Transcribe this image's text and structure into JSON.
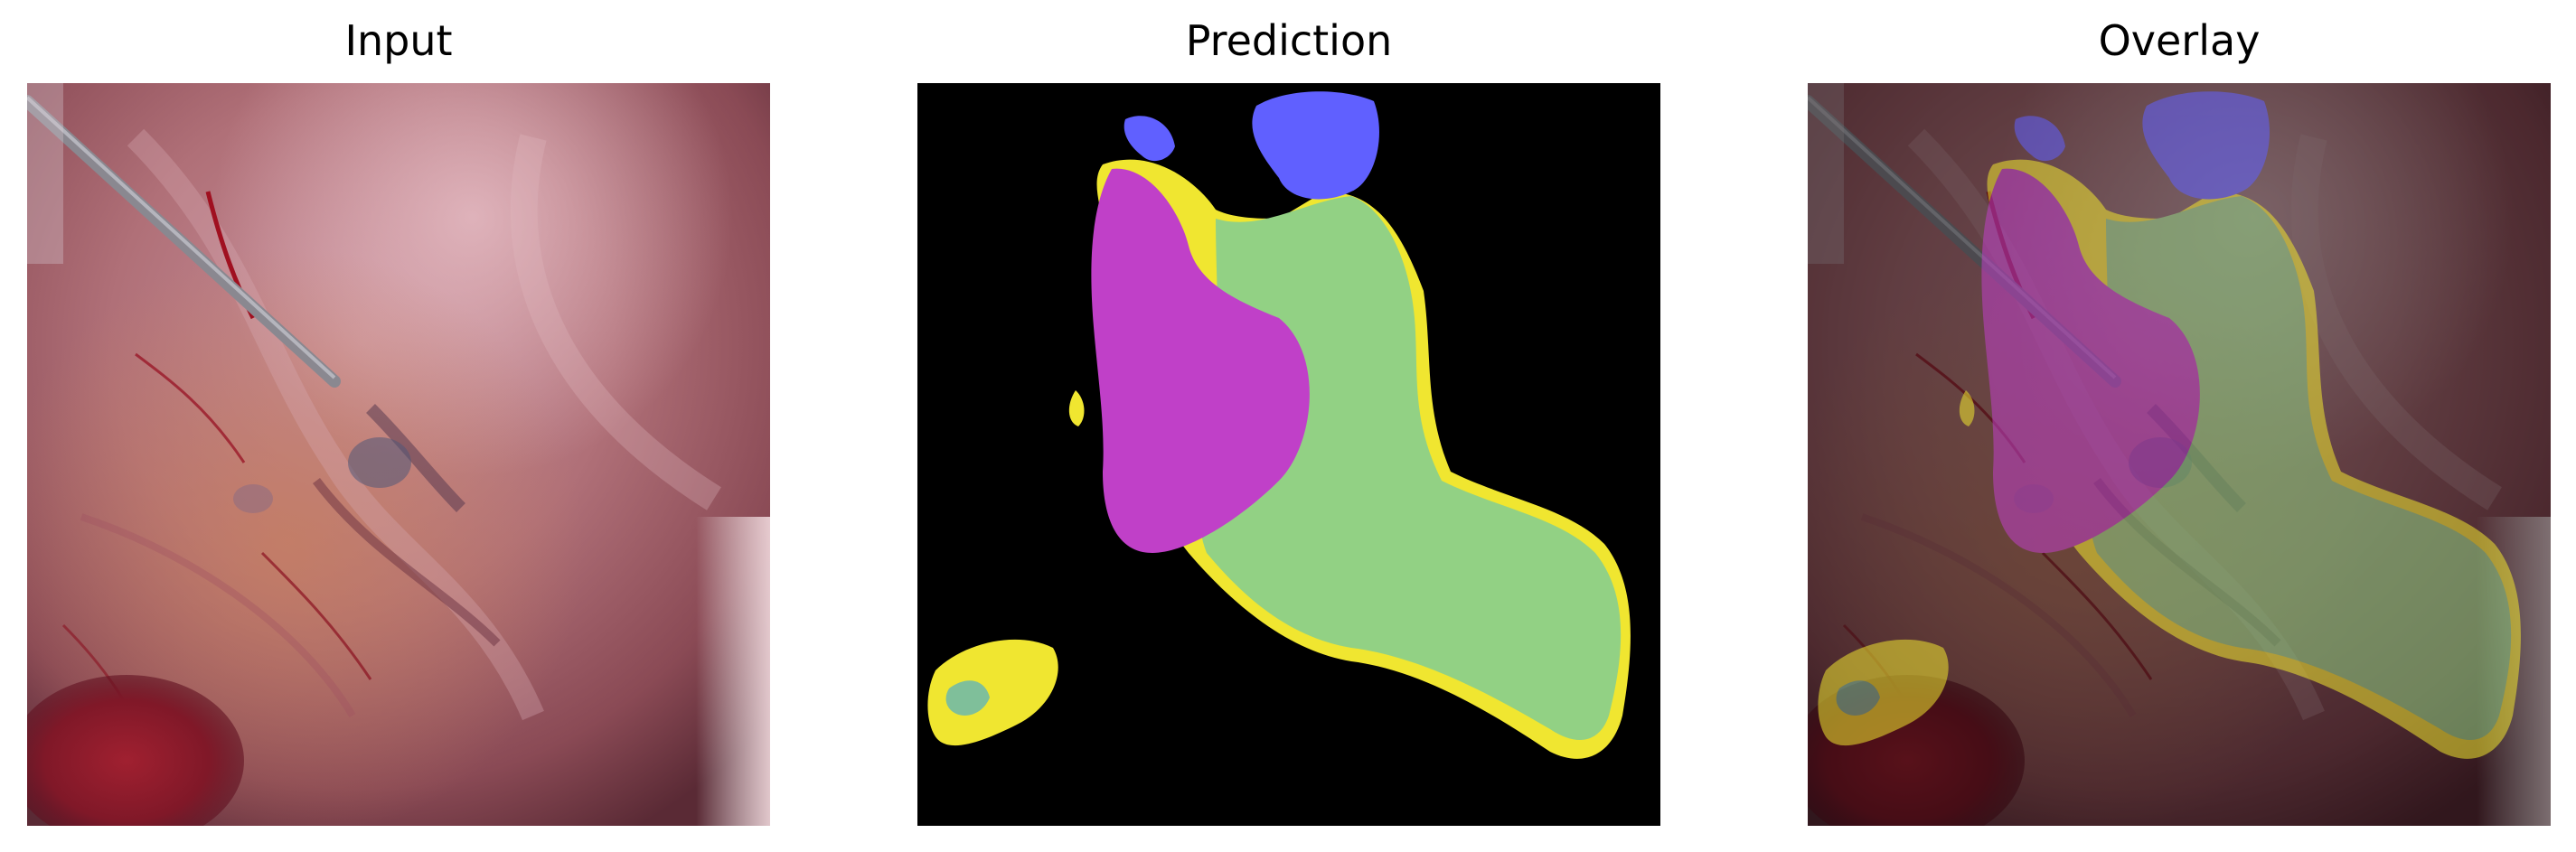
{
  "panels": [
    {
      "title": "Input"
    },
    {
      "title": "Prediction"
    },
    {
      "title": "Overlay"
    }
  ],
  "colors": {
    "background": "#000000",
    "magenta_class": "#c040c8",
    "green_class": "#92d184",
    "yellow_class": "#f0e630",
    "blue_class": "#6060ff",
    "teal_spot": "#7fbf9a"
  }
}
